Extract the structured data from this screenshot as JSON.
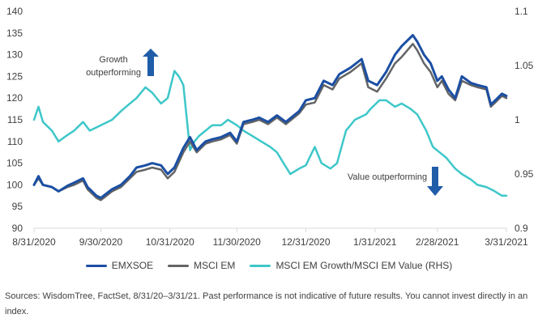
{
  "colors": {
    "emxsoe": "#1b4fa3",
    "msci_em": "#636466",
    "ratio": "#3ec7c9",
    "arrow": "#1f5da8",
    "axis": "#d9d9d9",
    "text": "#404040"
  },
  "chart_data": {
    "type": "line",
    "x_tick_labels": [
      "8/31/2020",
      "9/30/2020",
      "10/31/2020",
      "11/30/2020",
      "12/31/2020",
      "1/31/2021",
      "2/28/2021",
      "3/31/2021"
    ],
    "left_axis": {
      "ylim": [
        90,
        140
      ],
      "ticks": [
        "90",
        "95",
        "100",
        "105",
        "110",
        "115",
        "120",
        "125",
        "130",
        "135",
        "140"
      ]
    },
    "right_axis": {
      "ylim": [
        0.9,
        1.1
      ],
      "ticks": [
        "0.9",
        "0.95",
        "1",
        "1.05",
        "1.1"
      ]
    },
    "grid": false,
    "legend_position": "bottom",
    "series": [
      {
        "name": "EMXSOE",
        "axis": "left",
        "color": "#1b4fa3",
        "points": [
          [
            "2020-08-31",
            100
          ],
          [
            "2020-09-02",
            102
          ],
          [
            "2020-09-04",
            100
          ],
          [
            "2020-09-08",
            99.5
          ],
          [
            "2020-09-11",
            98.5
          ],
          [
            "2020-09-15",
            99.8
          ],
          [
            "2020-09-18",
            100.5
          ],
          [
            "2020-09-22",
            101.5
          ],
          [
            "2020-09-24",
            99.5
          ],
          [
            "2020-09-28",
            97.5
          ],
          [
            "2020-09-30",
            97
          ],
          [
            "2020-10-05",
            99
          ],
          [
            "2020-10-09",
            100
          ],
          [
            "2020-10-13",
            102
          ],
          [
            "2020-10-16",
            104
          ],
          [
            "2020-10-20",
            104.5
          ],
          [
            "2020-10-23",
            105
          ],
          [
            "2020-10-27",
            104.5
          ],
          [
            "2020-10-30",
            102.5
          ],
          [
            "2020-11-02",
            104
          ],
          [
            "2020-11-06",
            108.5
          ],
          [
            "2020-11-09",
            111
          ],
          [
            "2020-11-12",
            108
          ],
          [
            "2020-11-16",
            110
          ],
          [
            "2020-11-19",
            110.5
          ],
          [
            "2020-11-23",
            111
          ],
          [
            "2020-11-27",
            112
          ],
          [
            "2020-11-30",
            110
          ],
          [
            "2020-12-03",
            114.5
          ],
          [
            "2020-12-07",
            115
          ],
          [
            "2020-12-10",
            115.5
          ],
          [
            "2020-12-14",
            114.5
          ],
          [
            "2020-12-18",
            116
          ],
          [
            "2020-12-22",
            114.5
          ],
          [
            "2020-12-28",
            117
          ],
          [
            "2020-12-31",
            119.5
          ],
          [
            "2021-01-04",
            120
          ],
          [
            "2021-01-08",
            124
          ],
          [
            "2021-01-12",
            123
          ],
          [
            "2021-01-15",
            125.5
          ],
          [
            "2021-01-20",
            127
          ],
          [
            "2021-01-25",
            129
          ],
          [
            "2021-01-28",
            124
          ],
          [
            "2021-02-01",
            123
          ],
          [
            "2021-02-05",
            126
          ],
          [
            "2021-02-09",
            130
          ],
          [
            "2021-02-12",
            132
          ],
          [
            "2021-02-17",
            134.5
          ],
          [
            "2021-02-19",
            133
          ],
          [
            "2021-02-22",
            130
          ],
          [
            "2021-02-25",
            128
          ],
          [
            "2021-02-28",
            124
          ],
          [
            "2021-03-02",
            125
          ],
          [
            "2021-03-05",
            122
          ],
          [
            "2021-03-08",
            120
          ],
          [
            "2021-03-11",
            125
          ],
          [
            "2021-03-15",
            123.5
          ],
          [
            "2021-03-18",
            123
          ],
          [
            "2021-03-22",
            122.5
          ],
          [
            "2021-03-24",
            118.5
          ],
          [
            "2021-03-26",
            119.5
          ],
          [
            "2021-03-29",
            121
          ],
          [
            "2021-03-31",
            120.5
          ]
        ]
      },
      {
        "name": "MSCI EM",
        "axis": "left",
        "color": "#636466",
        "points": [
          [
            "2020-08-31",
            100
          ],
          [
            "2020-09-02",
            101.5
          ],
          [
            "2020-09-04",
            100
          ],
          [
            "2020-09-08",
            99.5
          ],
          [
            "2020-09-11",
            98.5
          ],
          [
            "2020-09-15",
            99.5
          ],
          [
            "2020-09-18",
            100
          ],
          [
            "2020-09-22",
            101
          ],
          [
            "2020-09-24",
            99
          ],
          [
            "2020-09-28",
            97
          ],
          [
            "2020-09-30",
            96.5
          ],
          [
            "2020-10-05",
            98.5
          ],
          [
            "2020-10-09",
            99.5
          ],
          [
            "2020-10-13",
            101.5
          ],
          [
            "2020-10-16",
            103
          ],
          [
            "2020-10-20",
            103.5
          ],
          [
            "2020-10-23",
            104
          ],
          [
            "2020-10-27",
            103.5
          ],
          [
            "2020-10-30",
            101.5
          ],
          [
            "2020-11-02",
            103
          ],
          [
            "2020-11-06",
            107.5
          ],
          [
            "2020-11-09",
            110
          ],
          [
            "2020-11-12",
            107.5
          ],
          [
            "2020-11-16",
            109.5
          ],
          [
            "2020-11-19",
            110
          ],
          [
            "2020-11-23",
            110.5
          ],
          [
            "2020-11-27",
            111.5
          ],
          [
            "2020-11-30",
            109.5
          ],
          [
            "2020-12-03",
            114
          ],
          [
            "2020-12-07",
            114.5
          ],
          [
            "2020-12-10",
            115
          ],
          [
            "2020-12-14",
            114
          ],
          [
            "2020-12-18",
            115.5
          ],
          [
            "2020-12-22",
            114
          ],
          [
            "2020-12-28",
            116.5
          ],
          [
            "2020-12-31",
            118.5
          ],
          [
            "2021-01-04",
            119
          ],
          [
            "2021-01-08",
            123
          ],
          [
            "2021-01-12",
            122
          ],
          [
            "2021-01-15",
            124.5
          ],
          [
            "2021-01-20",
            126
          ],
          [
            "2021-01-25",
            128
          ],
          [
            "2021-01-28",
            122.5
          ],
          [
            "2021-02-01",
            121.5
          ],
          [
            "2021-02-05",
            124.5
          ],
          [
            "2021-02-09",
            128
          ],
          [
            "2021-02-12",
            129.5
          ],
          [
            "2021-02-17",
            132.5
          ],
          [
            "2021-02-19",
            131
          ],
          [
            "2021-02-22",
            128
          ],
          [
            "2021-02-25",
            126
          ],
          [
            "2021-02-28",
            122.5
          ],
          [
            "2021-03-02",
            124
          ],
          [
            "2021-03-05",
            121
          ],
          [
            "2021-03-08",
            119.5
          ],
          [
            "2021-03-11",
            124
          ],
          [
            "2021-03-15",
            123
          ],
          [
            "2021-03-18",
            122.5
          ],
          [
            "2021-03-22",
            122
          ],
          [
            "2021-03-24",
            118
          ],
          [
            "2021-03-26",
            119
          ],
          [
            "2021-03-29",
            120.5
          ],
          [
            "2021-03-31",
            120
          ]
        ]
      },
      {
        "name": "MSCI EM Growth/MSCI EM Value (RHS)",
        "axis": "right",
        "color": "#3ec7c9",
        "points": [
          [
            "2020-08-31",
            1.0
          ],
          [
            "2020-09-02",
            1.012
          ],
          [
            "2020-09-04",
            0.998
          ],
          [
            "2020-09-08",
            0.99
          ],
          [
            "2020-09-11",
            0.98
          ],
          [
            "2020-09-15",
            0.986
          ],
          [
            "2020-09-18",
            0.99
          ],
          [
            "2020-09-22",
            0.998
          ],
          [
            "2020-09-25",
            0.99
          ],
          [
            "2020-09-30",
            0.995
          ],
          [
            "2020-10-05",
            1.0
          ],
          [
            "2020-10-09",
            1.008
          ],
          [
            "2020-10-13",
            1.015
          ],
          [
            "2020-10-16",
            1.02
          ],
          [
            "2020-10-20",
            1.03
          ],
          [
            "2020-10-23",
            1.025
          ],
          [
            "2020-10-27",
            1.015
          ],
          [
            "2020-10-30",
            1.02
          ],
          [
            "2020-11-02",
            1.045
          ],
          [
            "2020-11-04",
            1.04
          ],
          [
            "2020-11-06",
            1.032
          ],
          [
            "2020-11-09",
            0.972
          ],
          [
            "2020-11-11",
            0.98
          ],
          [
            "2020-11-13",
            0.985
          ],
          [
            "2020-11-16",
            0.99
          ],
          [
            "2020-11-19",
            0.995
          ],
          [
            "2020-11-23",
            0.995
          ],
          [
            "2020-11-26",
            1.0
          ],
          [
            "2020-11-30",
            0.995
          ],
          [
            "2020-12-03",
            0.99
          ],
          [
            "2020-12-07",
            0.985
          ],
          [
            "2020-12-11",
            0.98
          ],
          [
            "2020-12-15",
            0.975
          ],
          [
            "2020-12-18",
            0.97
          ],
          [
            "2020-12-21",
            0.96
          ],
          [
            "2020-12-24",
            0.95
          ],
          [
            "2020-12-28",
            0.955
          ],
          [
            "2020-12-31",
            0.958
          ],
          [
            "2021-01-04",
            0.975
          ],
          [
            "2021-01-07",
            0.96
          ],
          [
            "2021-01-11",
            0.955
          ],
          [
            "2021-01-14",
            0.96
          ],
          [
            "2021-01-18",
            0.99
          ],
          [
            "2021-01-22",
            1.0
          ],
          [
            "2021-01-27",
            1.005
          ],
          [
            "2021-01-29",
            1.01
          ],
          [
            "2021-02-02",
            1.018
          ],
          [
            "2021-02-05",
            1.018
          ],
          [
            "2021-02-09",
            1.012
          ],
          [
            "2021-02-12",
            1.015
          ],
          [
            "2021-02-16",
            1.01
          ],
          [
            "2021-02-19",
            1.005
          ],
          [
            "2021-02-23",
            0.99
          ],
          [
            "2021-02-26",
            0.975
          ],
          [
            "2021-03-01",
            0.97
          ],
          [
            "2021-03-04",
            0.965
          ],
          [
            "2021-03-08",
            0.955
          ],
          [
            "2021-03-11",
            0.95
          ],
          [
            "2021-03-15",
            0.945
          ],
          [
            "2021-03-18",
            0.94
          ],
          [
            "2021-03-22",
            0.938
          ],
          [
            "2021-03-25",
            0.935
          ],
          [
            "2021-03-29",
            0.93
          ],
          [
            "2021-03-31",
            0.93
          ]
        ]
      }
    ],
    "annotations": [
      {
        "lines": [
          "Growth",
          "outperforming"
        ],
        "arrow": "up"
      },
      {
        "lines": [
          "Value outperforming"
        ],
        "arrow": "down"
      }
    ]
  },
  "legend": [
    {
      "label": "EMXSOE",
      "color": "#1b4fa3"
    },
    {
      "label": "MSCI EM",
      "color": "#636466"
    },
    {
      "label": "MSCI EM Growth/MSCI EM Value (RHS)",
      "color": "#3ec7c9"
    }
  ],
  "source_text": "Sources: WisdomTree, FactSet, 8/31/20–3/31/21. Past performance is not indicative of future results. You cannot invest directly in an index."
}
